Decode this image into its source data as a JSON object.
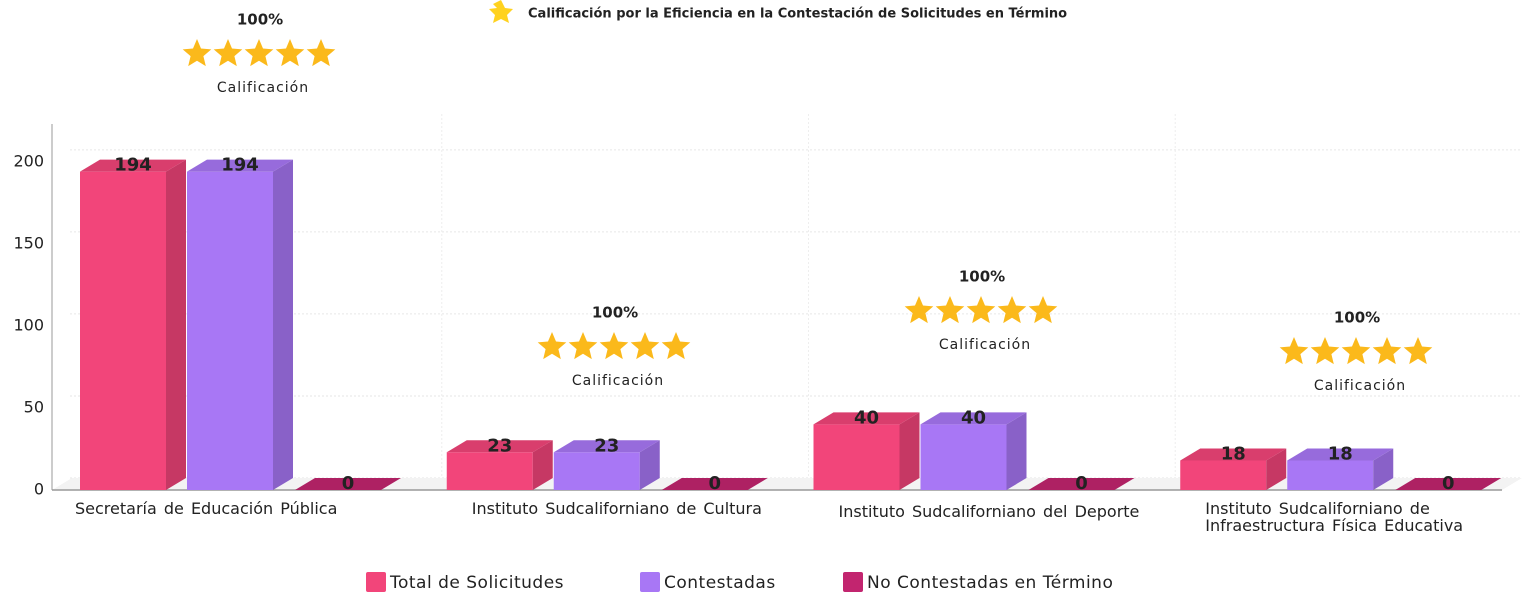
{
  "chart_data": {
    "type": "bar3d",
    "title": "Calificación por la Eficiencia en la Contestación de Solicitudes en Término",
    "categories": [
      "Secretaría de Educación Pública",
      "Instituto Sudcaliforniano de Cultura",
      "Instituto Sudcaliforniano del Deporte",
      "Instituto Sudcaliforniano de Infraestructura Física Educativa"
    ],
    "series": [
      {
        "name": "Total de Solicitudes",
        "color": "#f2457a",
        "values": [
          194,
          23,
          40,
          18
        ]
      },
      {
        "name": "Contestadas",
        "color": "#a877f5",
        "values": [
          194,
          23,
          40,
          18
        ]
      },
      {
        "name": "No Contestadas en Término",
        "color": "#c2256f",
        "values": [
          0,
          0,
          0,
          0
        ]
      }
    ],
    "ratings": [
      "100%",
      "100%",
      "100%",
      "100%"
    ],
    "rating_label": "Calificación",
    "ylim": [
      0,
      220
    ],
    "yticks": [
      0,
      50,
      100,
      150,
      200
    ],
    "grid": true
  }
}
